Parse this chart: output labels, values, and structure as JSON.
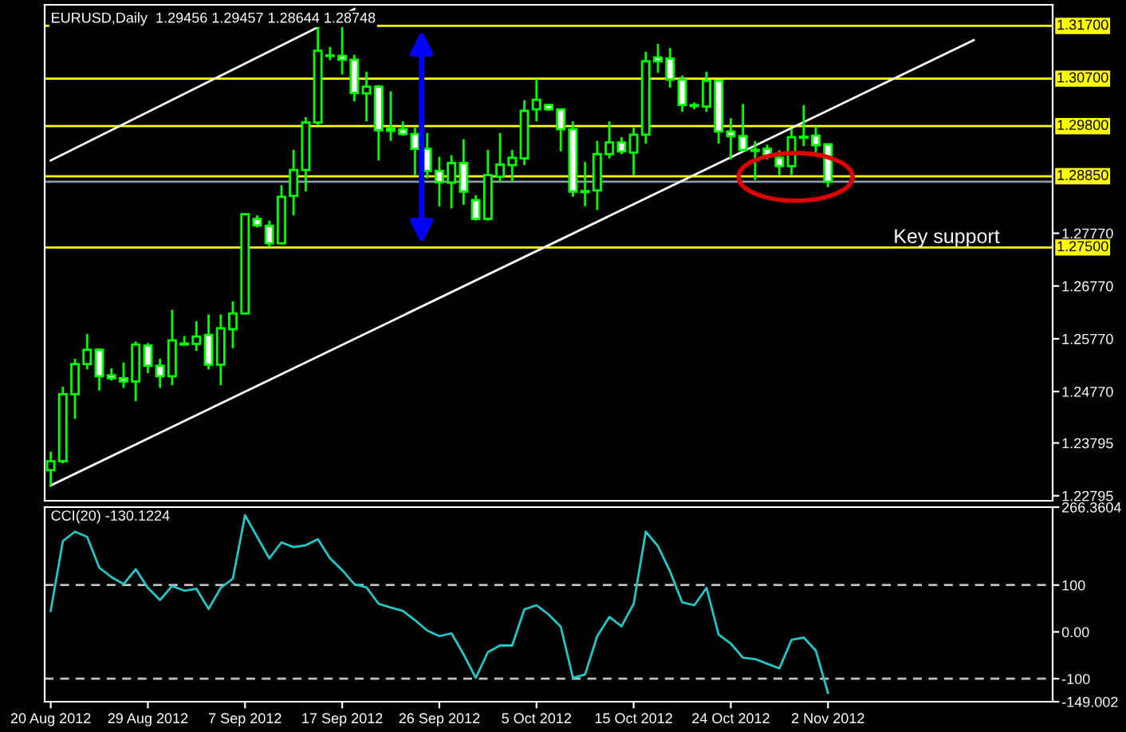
{
  "chart_data": [
    {
      "type": "candlestick",
      "title": "EURUSD,Daily  1.29456 1.29457 1.28644 1.28748",
      "categories": [
        null,
        null,
        null,
        null,
        null,
        null,
        null,
        null,
        null,
        null,
        null,
        null,
        null,
        null,
        null,
        null,
        null,
        null,
        null,
        null,
        null,
        null,
        null,
        null,
        null,
        null,
        null,
        null,
        null,
        null,
        null,
        null,
        null,
        null,
        null,
        null,
        null,
        null,
        null,
        null,
        null,
        null,
        null,
        null,
        null,
        null,
        null,
        null,
        null,
        null,
        null,
        null,
        null,
        null,
        null,
        null,
        null,
        null,
        null,
        null,
        null,
        null,
        null,
        null,
        null,
        null,
        null,
        null,
        null,
        null,
        null,
        null,
        null,
        null,
        null,
        null,
        null,
        null,
        null,
        null,
        null,
        null,
        null
      ],
      "ohlc": [
        [
          1.2328,
          1.2363,
          1.2298,
          1.2345
        ],
        [
          1.2345,
          1.2486,
          1.2341,
          1.2472
        ],
        [
          1.2472,
          1.2539,
          1.2425,
          1.2529
        ],
        [
          1.2529,
          1.2586,
          1.2519,
          1.2556
        ],
        [
          1.2556,
          1.2559,
          1.2479,
          1.2506
        ],
        [
          1.2508,
          1.2521,
          1.2498,
          1.2502
        ],
        [
          1.2502,
          1.2532,
          1.2484,
          1.2496
        ],
        [
          1.2496,
          1.2572,
          1.2459,
          1.2566
        ],
        [
          1.2564,
          1.2569,
          1.2512,
          1.2526
        ],
        [
          1.2526,
          1.2539,
          1.2484,
          1.2506
        ],
        [
          1.2506,
          1.2632,
          1.2489,
          1.2574
        ],
        [
          1.2566,
          1.2582,
          1.2564,
          1.2568
        ],
        [
          1.2567,
          1.261,
          1.2554,
          1.2581
        ],
        [
          1.2584,
          1.2623,
          1.2519,
          1.2528
        ],
        [
          1.2528,
          1.2623,
          1.2489,
          1.2597
        ],
        [
          1.2595,
          1.2648,
          1.2559,
          1.2625
        ],
        [
          1.2625,
          1.2814,
          1.2623,
          1.2813
        ],
        [
          1.2804,
          1.2811,
          1.2788,
          1.2792
        ],
        [
          1.2791,
          1.2801,
          1.2751,
          1.2758
        ],
        [
          1.2758,
          1.2868,
          1.2756,
          1.2846
        ],
        [
          1.2848,
          1.2935,
          1.2811,
          1.2897
        ],
        [
          1.2897,
          1.2997,
          1.2856,
          1.2987
        ],
        [
          1.2987,
          1.3173,
          1.2982,
          1.3123
        ],
        [
          1.3114,
          1.313,
          1.3105,
          1.3113
        ],
        [
          1.3113,
          1.3173,
          1.3078,
          1.3106
        ],
        [
          1.3106,
          1.3115,
          1.3027,
          1.3043
        ],
        [
          1.3042,
          1.3083,
          1.2989,
          1.3055
        ],
        [
          1.3055,
          1.3058,
          1.2915,
          1.2972
        ],
        [
          1.2976,
          1.3046,
          1.2952,
          1.2971
        ],
        [
          1.2974,
          1.2989,
          1.2962,
          1.2965
        ],
        [
          1.2965,
          1.2977,
          1.2887,
          1.2937
        ],
        [
          1.2937,
          1.2967,
          1.2881,
          1.2895
        ],
        [
          1.2895,
          1.2922,
          1.2828,
          1.2874
        ],
        [
          1.2873,
          1.2925,
          1.2824,
          1.291
        ],
        [
          1.291,
          1.2955,
          1.2831,
          1.2856
        ],
        [
          1.284,
          1.2849,
          1.2801,
          1.2804
        ],
        [
          1.2804,
          1.2935,
          1.2801,
          1.2887
        ],
        [
          1.2884,
          1.2967,
          1.2874,
          1.2907
        ],
        [
          1.2906,
          1.2935,
          1.2874,
          1.292
        ],
        [
          1.2919,
          1.3029,
          1.2906,
          1.3009
        ],
        [
          1.3012,
          1.307,
          1.2989,
          1.303
        ],
        [
          1.302,
          1.3022,
          1.3009,
          1.3012
        ],
        [
          1.3012,
          1.3012,
          1.2932,
          1.2974
        ],
        [
          1.2974,
          1.2989,
          1.2846,
          1.2856
        ],
        [
          1.2857,
          1.2912,
          1.2828,
          1.2855
        ],
        [
          1.2858,
          1.2952,
          1.2821,
          1.2927
        ],
        [
          1.2927,
          1.2989,
          1.2919,
          1.2949
        ],
        [
          1.2949,
          1.2959,
          1.2927,
          1.2932
        ],
        [
          1.293,
          1.2977,
          1.2887,
          1.2964
        ],
        [
          1.2964,
          1.3121,
          1.2947,
          1.3103
        ],
        [
          1.311,
          1.3136,
          1.3081,
          1.3103
        ],
        [
          1.3108,
          1.3128,
          1.3053,
          1.3068
        ],
        [
          1.3068,
          1.3076,
          1.3007,
          1.302
        ],
        [
          1.302,
          1.3025,
          1.3012,
          1.3018
        ],
        [
          1.3017,
          1.3083,
          1.3007,
          1.3066
        ],
        [
          1.3066,
          1.3068,
          1.2947,
          1.297
        ],
        [
          1.297,
          1.2995,
          1.2917,
          1.2961
        ],
        [
          1.2961,
          1.3022,
          1.2932,
          1.2935
        ],
        [
          1.2935,
          1.2952,
          1.2878,
          1.2933
        ],
        [
          1.2937,
          1.2945,
          1.2917,
          1.2922
        ],
        [
          1.292,
          1.2934,
          1.2887,
          1.2904
        ],
        [
          1.2904,
          1.2975,
          1.2887,
          1.2959
        ],
        [
          1.296,
          1.302,
          1.2942,
          1.2958
        ],
        [
          1.2962,
          1.298,
          1.293,
          1.2944
        ],
        [
          1.29456,
          1.29457,
          1.28644,
          1.28748
        ],
        null,
        null,
        null,
        null,
        null,
        null,
        null,
        null,
        null,
        null,
        null,
        null,
        null,
        null,
        null,
        null,
        null,
        null
      ],
      "color": "#00ff00",
      "colors": [
        "#000000",
        "#000000",
        "#000000",
        "#000000",
        "#ffffff",
        "#ffffff",
        "#ffffff",
        "#000000",
        "#ffffff",
        "#ffffff",
        "#000000",
        "#000000",
        "#000000",
        "#ffffff",
        "#000000",
        "#000000",
        "#000000",
        "#ffffff",
        "#ffffff",
        "#000000",
        "#000000",
        "#000000",
        "#000000",
        "#ffffff",
        "#ffffff",
        "#ffffff",
        "#000000",
        "#ffffff",
        "#ffffff",
        "#ffffff",
        "#ffffff",
        "#ffffff",
        "#ffffff",
        "#000000",
        "#ffffff",
        "#ffffff",
        "#000000",
        "#000000",
        "#000000",
        "#000000",
        "#000000",
        "#ffffff",
        "#ffffff",
        "#ffffff",
        "#ffffff",
        "#000000",
        "#000000",
        "#ffffff",
        "#000000",
        "#000000",
        "#ffffff",
        "#ffffff",
        "#ffffff",
        "#ffffff",
        "#000000",
        "#ffffff",
        "#ffffff",
        "#ffffff",
        "#ffffff",
        "#ffffff",
        "#ffffff",
        "#000000",
        "#ffffff",
        "#ffffff",
        "#ffffff",
        null,
        null,
        null,
        null,
        null,
        null,
        null,
        null,
        null,
        null,
        null,
        null,
        null,
        null,
        null,
        null,
        null,
        null
      ],
      "series": [
        {
          "type": "line",
          "color": "#ffffff",
          "values": [
            1.2915,
            null,
            null,
            null,
            null,
            null,
            null,
            null,
            null,
            null,
            null,
            null,
            null,
            null,
            null,
            null,
            null,
            null,
            null,
            null,
            null,
            null,
            null,
            null,
            null,
            1.3202,
            null,
            null,
            null,
            null,
            null,
            null,
            null,
            null,
            null,
            null,
            null,
            null,
            null,
            null,
            null,
            null,
            null,
            null,
            null,
            null,
            null,
            null,
            null,
            null,
            null,
            null,
            null,
            null,
            null,
            null,
            null,
            null,
            null,
            null,
            null,
            null,
            null,
            null,
            null,
            null,
            null,
            null,
            null,
            null,
            null,
            null,
            null,
            null,
            null,
            null,
            null,
            null,
            null,
            null,
            null,
            null,
            null
          ]
        },
        {
          "type": "line",
          "color": "#ffffff",
          "values": [
            1.2299,
            null,
            null,
            null,
            null,
            null,
            null,
            null,
            null,
            null,
            null,
            null,
            null,
            null,
            null,
            null,
            null,
            null,
            null,
            null,
            null,
            null,
            null,
            null,
            null,
            null,
            null,
            null,
            null,
            null,
            null,
            null,
            null,
            null,
            null,
            null,
            null,
            null,
            null,
            null,
            null,
            null,
            null,
            null,
            null,
            null,
            null,
            null,
            null,
            null,
            null,
            null,
            null,
            null,
            null,
            null,
            null,
            null,
            null,
            null,
            null,
            null,
            null,
            null,
            null,
            null,
            null,
            null,
            null,
            null,
            null,
            null,
            null,
            null,
            null,
            null,
            1.3143,
            null,
            null,
            null,
            null,
            null,
            null
          ]
        }
      ],
      "ylim": [
        1.227,
        1.321
      ],
      "yticks": [
        {
          "value": 1.22795,
          "label": "1.22795"
        },
        {
          "value": 1.23795,
          "label": "1.23795"
        },
        {
          "value": 1.2477,
          "label": "1.24770"
        },
        {
          "value": 1.2577,
          "label": "1.25770"
        },
        {
          "value": 1.2677,
          "label": "1.26770"
        },
        {
          "value": 1.2777,
          "label": "1.27770"
        }
      ],
      "ref_lines": [
        {
          "axis": "y",
          "value": 1.317,
          "label": "1.31700",
          "color": "#ffff00"
        },
        {
          "axis": "y",
          "value": 1.307,
          "label": "1.30700",
          "color": "#ffff00"
        },
        {
          "axis": "y",
          "value": 1.298,
          "label": "1.29800",
          "color": "#ffff00"
        },
        {
          "axis": "y",
          "value": 1.2885,
          "label": "1.28850",
          "color": "#ffff00"
        },
        {
          "axis": "y",
          "value": 1.275,
          "label": "1.27500",
          "color": "#ffff00"
        },
        {
          "axis": "y",
          "value": 1.28748,
          "color": "#8c9aa8"
        }
      ],
      "annotations": [
        "Key support"
      ],
      "tick_labels": "y"
    },
    {
      "type": "line",
      "title": "CCI(20) -130.1224",
      "categories": [
        "20 Aug 2012",
        null,
        null,
        null,
        null,
        null,
        null,
        null,
        "29 Aug 2012",
        null,
        null,
        null,
        null,
        null,
        null,
        null,
        "7 Sep 2012",
        null,
        null,
        null,
        null,
        null,
        null,
        null,
        "17 Sep 2012",
        null,
        null,
        null,
        null,
        null,
        null,
        null,
        "26 Sep 2012",
        null,
        null,
        null,
        null,
        null,
        null,
        null,
        "5 Oct 2012",
        null,
        null,
        null,
        null,
        null,
        null,
        null,
        "15 Oct 2012",
        null,
        null,
        null,
        null,
        null,
        null,
        null,
        "24 Oct 2012",
        null,
        null,
        null,
        null,
        null,
        null,
        null,
        "2 Nov 2012",
        null,
        null,
        null,
        null,
        null,
        null,
        null,
        null,
        null,
        null,
        null,
        null,
        null,
        null,
        null,
        null,
        null,
        null
      ],
      "series": [
        {
          "color": "#20c8c8",
          "values": [
            45,
            194,
            214,
            203,
            137,
            117,
            102,
            134,
            94,
            68,
            98,
            88,
            92,
            49,
            94,
            114,
            249,
            203,
            157,
            191,
            181,
            185,
            198,
            157,
            132,
            102,
            95,
            60,
            52,
            45,
            25,
            3,
            -9,
            -3,
            -48,
            -98,
            -43,
            -29,
            -29,
            48,
            57,
            37,
            11,
            -98,
            -91,
            -9,
            32,
            12,
            60,
            214,
            183,
            129,
            63,
            57,
            94,
            -6,
            -25,
            -55,
            -58,
            -68,
            -78,
            -17,
            -12,
            -40,
            -130.1224,
            null,
            null,
            null,
            null,
            null,
            null,
            null,
            null,
            null,
            null,
            null,
            null,
            null,
            null,
            null,
            null,
            null,
            null
          ]
        }
      ],
      "ylim": [
        -149.002,
        266.3604
      ],
      "yticks": [
        {
          "value": 266.3604,
          "label": "266.3604"
        },
        100,
        {
          "value": 0,
          "label": "0.00"
        },
        -100,
        {
          "value": -149.002,
          "label": "-149.002"
        }
      ],
      "ref_lines": [
        {
          "axis": "y",
          "value": 100,
          "color": "#c0c0c0",
          "line_style": "dashed"
        },
        {
          "axis": "y",
          "value": -100,
          "color": "#c0c0c0",
          "line_style": "dashed"
        }
      ]
    }
  ]
}
